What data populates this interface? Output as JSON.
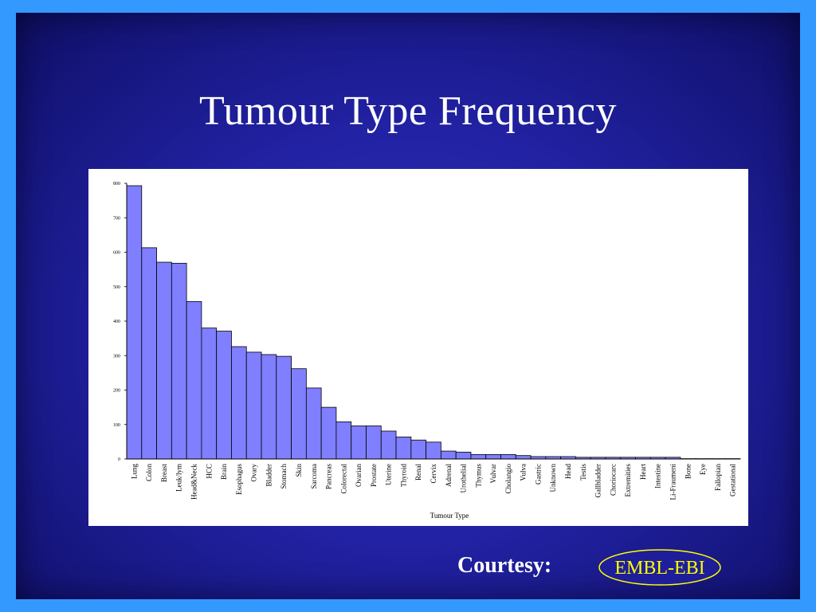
{
  "title": "Tumour Type Frequency",
  "courtesy_label": "Courtesy:",
  "logo_text": "EMBL-EBI",
  "colors": {
    "frame": "#3399ff",
    "slide_bg": "#2222a4",
    "bar_fill": "#7f7fff",
    "logo_outline": "#ffff00",
    "logo_fill": "#1e1e9a"
  },
  "chart_data": {
    "type": "bar",
    "title": "",
    "xlabel": "Tumour Type",
    "ylabel": "",
    "ylim": [
      0,
      800
    ],
    "yticks": [
      0,
      100,
      200,
      300,
      400,
      500,
      600,
      700,
      800
    ],
    "grid": false,
    "categories": [
      "Lung",
      "Colon",
      "Breast",
      "Leuk/lym",
      "Head&Neck",
      "HCC",
      "Brain",
      "Esophagus",
      "Ovary",
      "Bladder",
      "Stomach",
      "Skin",
      "Sarcoma",
      "Pancreas",
      "Colorectal",
      "Ovarian",
      "Prostate",
      "Uterine",
      "Thyroid",
      "Renal",
      "Cervix",
      "Adrenal",
      "Urothelial",
      "Thymus",
      "Vulvar",
      "Cholangio",
      "Vulva",
      "Gastric",
      "Unknown",
      "Head",
      "Testis",
      "Gallbladder",
      "Choriocarc",
      "Extremities",
      "Heart",
      "Intestine",
      "Li-Fraumeni",
      "Bone",
      "Eye",
      "Fallopian",
      "Gestational"
    ],
    "values": [
      793,
      613,
      571,
      568,
      457,
      380,
      371,
      326,
      310,
      303,
      298,
      262,
      206,
      150,
      108,
      96,
      96,
      81,
      64,
      55,
      49,
      23,
      20,
      13,
      13,
      13,
      10,
      7,
      7,
      7,
      5,
      5,
      5,
      5,
      5,
      5,
      5,
      1,
      1,
      1,
      1
    ]
  }
}
